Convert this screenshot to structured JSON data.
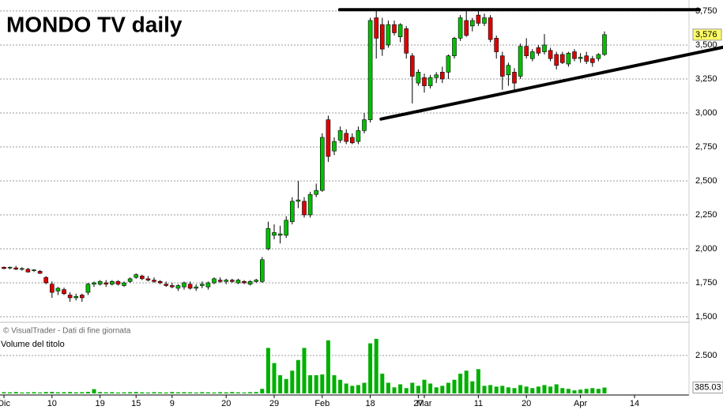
{
  "chart_data": {
    "type": "candlestick",
    "title": "MONDO TV daily",
    "source_note": "© VisualTrader - Dati di fine giornata",
    "categories": [
      "Dic",
      null,
      null,
      null,
      null,
      null,
      null,
      null,
      "10",
      null,
      null,
      null,
      null,
      null,
      null,
      null,
      "19",
      null,
      null,
      null,
      null,
      null,
      "15",
      null,
      null,
      null,
      null,
      null,
      "9",
      null,
      null,
      null,
      null,
      null,
      null,
      null,
      null,
      "20",
      null,
      null,
      null,
      null,
      null,
      null,
      null,
      "29",
      null,
      null,
      null,
      null,
      null,
      null,
      null,
      "Feb",
      null,
      null,
      null,
      null,
      null,
      null,
      null,
      "18",
      null,
      null,
      null,
      null,
      null,
      null,
      null,
      "27",
      "Mar",
      null,
      null,
      null,
      null,
      null,
      null,
      null,
      null,
      "11",
      null,
      null,
      null,
      null,
      null,
      null,
      null,
      "20",
      null,
      null,
      null,
      null,
      null,
      null,
      null,
      null,
      "Apr",
      null,
      null,
      null,
      null,
      null,
      null,
      null,
      null,
      "14"
    ],
    "open": [
      1.865,
      1.86,
      1.86,
      1.85,
      1.85,
      1.84,
      1.835,
      1.79,
      1.74,
      1.69,
      1.7,
      1.66,
      1.64,
      1.66,
      1.68,
      1.74,
      1.74,
      1.75,
      1.74,
      1.76,
      1.73,
      1.76,
      1.79,
      1.8,
      1.78,
      1.77,
      1.76,
      1.74,
      1.73,
      1.71,
      1.72,
      1.74,
      1.71,
      1.73,
      1.72,
      1.75,
      1.77,
      1.76,
      1.77,
      1.75,
      1.76,
      1.74,
      1.76,
      1.76,
      2.0,
      2.1,
      2.1,
      2.1,
      2.2,
      2.35,
      2.35,
      2.25,
      2.4,
      2.43,
      2.95,
      2.72,
      2.8,
      2.85,
      2.82,
      2.79,
      2.87,
      2.95,
      3.7,
      3.65,
      3.5,
      3.65,
      3.56,
      3.62,
      3.42,
      3.22,
      3.26,
      3.2,
      3.26,
      3.3,
      3.3,
      3.42,
      3.55,
      3.68,
      3.64,
      3.72,
      3.66,
      3.7,
      3.55,
      3.42,
      3.28,
      3.3,
      3.27,
      3.49,
      3.4,
      3.48,
      3.45,
      3.46,
      3.43,
      3.43,
      3.36,
      3.45,
      3.4,
      3.42,
      3.4,
      3.4,
      3.43,
      null,
      null,
      null,
      null,
      null
    ],
    "high": [
      1.87,
      1.87,
      1.875,
      1.865,
      1.86,
      1.85,
      1.845,
      1.8,
      1.76,
      1.72,
      1.715,
      1.68,
      1.67,
      1.67,
      1.75,
      1.76,
      1.77,
      1.77,
      1.77,
      1.77,
      1.76,
      1.79,
      1.82,
      1.81,
      1.8,
      1.79,
      1.77,
      1.76,
      1.75,
      1.74,
      1.76,
      1.76,
      1.74,
      1.76,
      1.76,
      1.79,
      1.79,
      1.78,
      1.78,
      1.78,
      1.77,
      1.77,
      1.78,
      1.94,
      2.2,
      2.18,
      2.17,
      2.24,
      2.38,
      2.5,
      2.38,
      2.42,
      2.48,
      2.85,
      2.98,
      2.82,
      2.9,
      2.88,
      2.85,
      2.9,
      3.0,
      3.7,
      3.76,
      3.7,
      3.68,
      3.68,
      3.66,
      3.64,
      3.44,
      3.32,
      3.29,
      3.28,
      3.3,
      3.34,
      3.43,
      3.56,
      3.72,
      3.75,
      3.7,
      3.75,
      3.73,
      3.72,
      3.57,
      3.45,
      3.37,
      3.33,
      3.51,
      3.55,
      3.47,
      3.5,
      3.58,
      3.48,
      3.45,
      3.45,
      3.45,
      3.47,
      3.44,
      3.45,
      3.42,
      3.44,
      3.6,
      null,
      null,
      null,
      null,
      null
    ],
    "low": [
      1.85,
      1.85,
      1.845,
      1.84,
      1.825,
      1.83,
      1.815,
      1.74,
      1.64,
      1.66,
      1.66,
      1.61,
      1.62,
      1.61,
      1.66,
      1.72,
      1.73,
      1.72,
      1.73,
      1.73,
      1.72,
      1.75,
      1.78,
      1.77,
      1.76,
      1.75,
      1.74,
      1.72,
      1.71,
      1.69,
      1.7,
      1.7,
      1.69,
      1.71,
      1.7,
      1.74,
      1.75,
      1.74,
      1.75,
      1.74,
      1.74,
      1.73,
      1.75,
      1.75,
      1.99,
      2.07,
      2.04,
      2.08,
      2.18,
      2.3,
      2.23,
      2.23,
      2.38,
      2.42,
      2.64,
      2.69,
      2.78,
      2.77,
      2.77,
      2.77,
      2.85,
      2.93,
      3.4,
      3.42,
      3.48,
      3.57,
      3.52,
      3.4,
      3.07,
      3.2,
      3.15,
      3.18,
      3.22,
      3.22,
      3.25,
      3.4,
      3.53,
      3.56,
      3.6,
      3.64,
      3.64,
      3.52,
      3.4,
      3.17,
      3.2,
      3.15,
      3.25,
      3.4,
      3.38,
      3.42,
      3.43,
      3.38,
      3.32,
      3.36,
      3.34,
      3.38,
      3.37,
      3.36,
      3.34,
      3.38,
      3.42,
      null,
      null,
      null,
      null,
      null
    ],
    "close": [
      1.855,
      1.865,
      1.85,
      1.855,
      1.83,
      1.845,
      1.82,
      1.75,
      1.68,
      1.71,
      1.67,
      1.64,
      1.65,
      1.64,
      1.74,
      1.75,
      1.76,
      1.74,
      1.76,
      1.74,
      1.75,
      1.78,
      1.81,
      1.78,
      1.77,
      1.76,
      1.75,
      1.73,
      1.72,
      1.73,
      1.75,
      1.71,
      1.72,
      1.74,
      1.75,
      1.78,
      1.76,
      1.77,
      1.76,
      1.77,
      1.75,
      1.76,
      1.77,
      1.92,
      2.15,
      2.12,
      2.11,
      2.21,
      2.35,
      2.36,
      2.25,
      2.4,
      2.43,
      2.82,
      2.68,
      2.79,
      2.87,
      2.79,
      2.78,
      2.87,
      2.95,
      3.68,
      3.55,
      3.47,
      3.65,
      3.59,
      3.65,
      3.44,
      3.27,
      3.3,
      3.2,
      3.26,
      3.28,
      3.25,
      3.42,
      3.55,
      3.7,
      3.57,
      3.68,
      3.66,
      3.7,
      3.54,
      3.45,
      3.27,
      3.35,
      3.22,
      3.49,
      3.42,
      3.45,
      3.44,
      3.5,
      3.4,
      3.35,
      3.37,
      3.44,
      3.4,
      3.41,
      3.38,
      3.37,
      3.43,
      3.576,
      null,
      null,
      null,
      null,
      null
    ],
    "last_close_label": "3,576",
    "up_color": "#00c000",
    "down_color": "#e00000",
    "xlim": [
      -0.66,
      114.08
    ],
    "ylim": [
      1.477,
      3.831
    ],
    "yticks": [
      {
        "value": 1.5,
        "label": "1,500"
      },
      {
        "value": 1.75,
        "label": "1,750"
      },
      {
        "value": 2.0,
        "label": "2,000"
      },
      {
        "value": 2.25,
        "label": "2,250"
      },
      {
        "value": 2.5,
        "label": "2,500"
      },
      {
        "value": 2.75,
        "label": "2,750"
      },
      {
        "value": 3.0,
        "label": "3,000"
      },
      {
        "value": 3.25,
        "label": "3,250"
      },
      {
        "value": 3.5,
        "label": "3,500"
      },
      {
        "value": 3.75,
        "label": "3,750"
      }
    ],
    "grid": true,
    "trendlines": [
      {
        "x": [
          55.9,
          115.8
        ],
        "y": [
          3.76,
          3.76
        ]
      },
      {
        "x": [
          62.8,
          119.7
        ],
        "y": [
          2.955,
          3.483
        ]
      }
    ],
    "volume": {
      "name": "Volume del titolo",
      "color": "#00b000",
      "values": [
        80,
        70,
        90,
        60,
        70,
        80,
        60,
        90,
        100,
        70,
        80,
        90,
        70,
        80,
        100,
        280,
        90,
        70,
        80,
        60,
        70,
        80,
        90,
        70,
        60,
        80,
        70,
        60,
        90,
        70,
        80,
        70,
        60,
        80,
        70,
        60,
        80,
        70,
        90,
        70,
        60,
        80,
        90,
        300,
        3000,
        2000,
        1200,
        950,
        1500,
        2200,
        3000,
        1200,
        1200,
        1250,
        3500,
        1200,
        900,
        650,
        500,
        550,
        700,
        3300,
        3600,
        1300,
        700,
        400,
        600,
        350,
        700,
        500,
        900,
        650,
        400,
        500,
        700,
        900,
        1300,
        1500,
        800,
        1600,
        500,
        550,
        450,
        500,
        400,
        350,
        550,
        450,
        350,
        450,
        550,
        450,
        600,
        350,
        300,
        200,
        250,
        300,
        350,
        300,
        385.03,
        null,
        null,
        null,
        null,
        null
      ],
      "ylim": [
        0,
        3698
      ],
      "yticks": [
        {
          "value": 2500,
          "label": "2.500"
        }
      ]
    }
  }
}
